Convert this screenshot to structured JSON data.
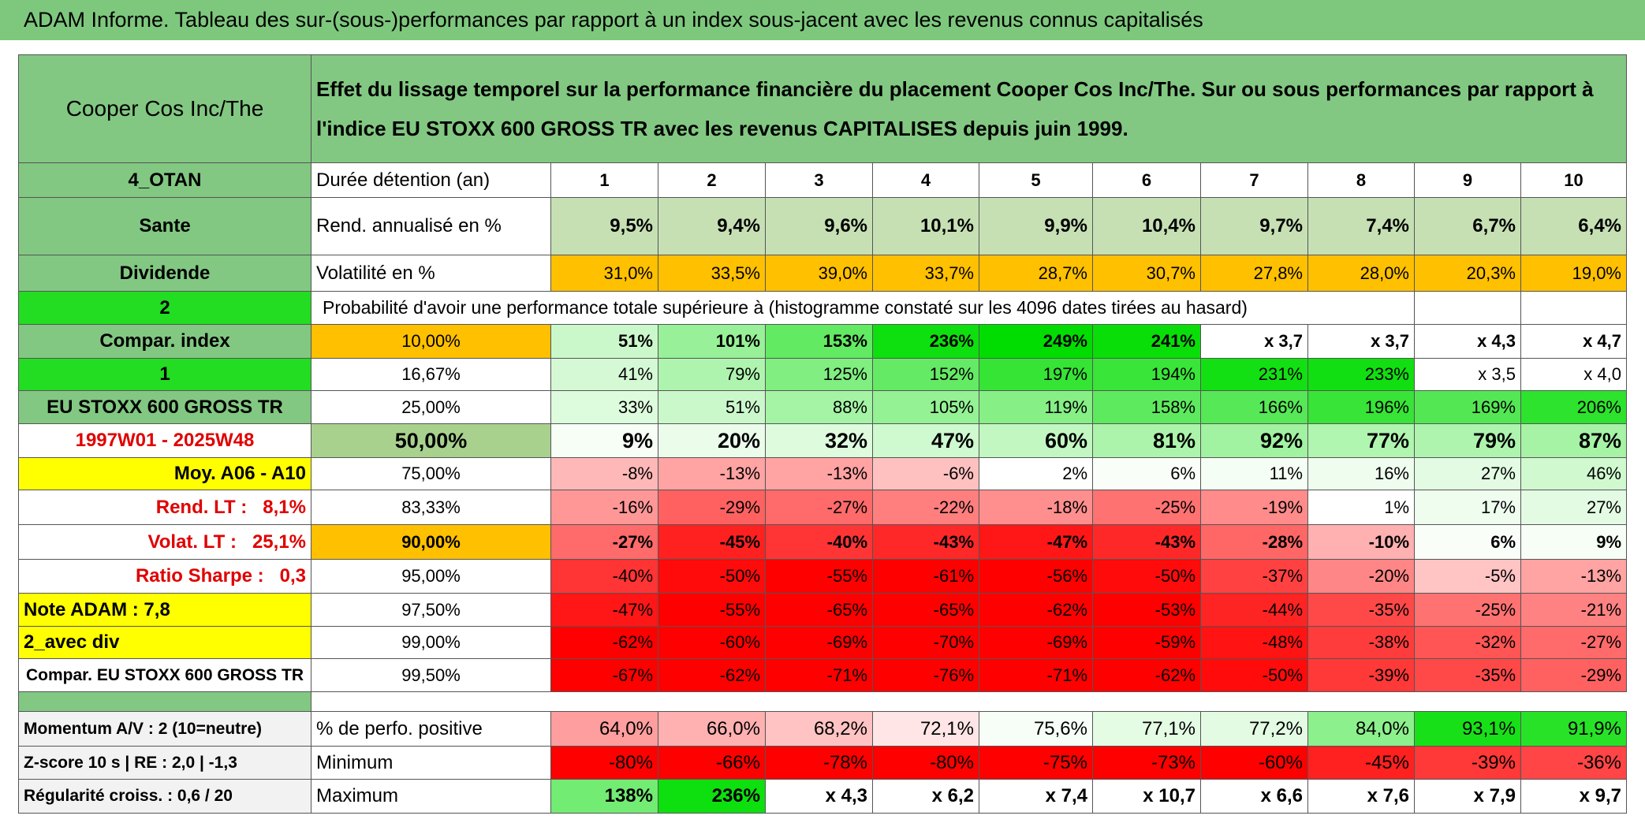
{
  "title": "ADAM Informe. Tableau des sur-(sous-)performances par rapport à un index sous-jacent avec les revenus connus capitalisés",
  "table": {
    "stock": "Cooper Cos Inc/The",
    "description": "Effet du lissage temporel sur la performance financière du placement Cooper Cos Inc/The. Sur ou sous performances par rapport à l'indice EU STOXX 600 GROSS TR avec les revenus CAPITALISES depuis juin 1999.",
    "rows": [
      [
        "4_OTAN",
        "Durée détention (an)",
        "1",
        "2",
        "3",
        "4",
        "5",
        "6",
        "7",
        "8",
        "9",
        "10"
      ],
      [
        "Sante",
        "Rend. annualisé en %",
        "9,5%",
        "9,4%",
        "9,6%",
        "10,1%",
        "9,9%",
        "10,4%",
        "9,7%",
        "7,4%",
        "6,7%",
        "6,4%"
      ],
      [
        "Dividende",
        "Volatilité en %",
        "31,0%",
        "33,5%",
        "39,0%",
        "33,7%",
        "28,7%",
        "30,7%",
        "27,8%",
        "28,0%",
        "20,3%",
        "19,0%"
      ],
      [
        "2",
        "Probabilité d'avoir une performance totale supérieure à (histogramme constaté sur les 4096 dates tirées au hasard)"
      ],
      [
        "Compar. index",
        "10,00%",
        "51%",
        "101%",
        "153%",
        "236%",
        "249%",
        "241%",
        "x 3,7",
        "x 3,7",
        "x 4,3",
        "x 4,7"
      ],
      [
        "1",
        "16,67%",
        "41%",
        "79%",
        "125%",
        "152%",
        "197%",
        "194%",
        "231%",
        "233%",
        "x 3,5",
        "x 4,0"
      ],
      [
        "EU STOXX 600 GROSS TR",
        "25,00%",
        "33%",
        "51%",
        "88%",
        "105%",
        "119%",
        "158%",
        "166%",
        "196%",
        "169%",
        "206%"
      ],
      [
        "1997W01 - 2025W48",
        "50,00%",
        "9%",
        "20%",
        "32%",
        "47%",
        "60%",
        "81%",
        "92%",
        "77%",
        "79%",
        "87%"
      ],
      [
        "Moy. A06 - A10",
        "75,00%",
        "-8%",
        "-13%",
        "-13%",
        "-6%",
        "2%",
        "6%",
        "11%",
        "16%",
        "27%",
        "46%"
      ],
      [
        "Rend. LT :   8,1%",
        "83,33%",
        "-16%",
        "-29%",
        "-27%",
        "-22%",
        "-18%",
        "-25%",
        "-19%",
        "1%",
        "17%",
        "27%"
      ],
      [
        "Volat. LT :   25,1%",
        "90,00%",
        "-27%",
        "-45%",
        "-40%",
        "-43%",
        "-47%",
        "-43%",
        "-28%",
        "-10%",
        "6%",
        "9%"
      ],
      [
        "Ratio Sharpe :   0,3",
        "95,00%",
        "-40%",
        "-50%",
        "-55%",
        "-61%",
        "-56%",
        "-50%",
        "-37%",
        "-20%",
        "-5%",
        "-13%"
      ],
      [
        "Note ADAM : 7,8",
        "97,50%",
        "-47%",
        "-55%",
        "-65%",
        "-65%",
        "-62%",
        "-53%",
        "-44%",
        "-35%",
        "-25%",
        "-21%"
      ],
      [
        "2_avec div",
        "99,00%",
        "-62%",
        "-60%",
        "-69%",
        "-70%",
        "-69%",
        "-59%",
        "-48%",
        "-38%",
        "-32%",
        "-27%"
      ],
      [
        "Compar. EU STOXX 600 GROSS TR",
        "99,50%",
        "-67%",
        "-62%",
        "-71%",
        "-76%",
        "-71%",
        "-62%",
        "-50%",
        "-39%",
        "-35%",
        "-29%"
      ],
      [
        "Momentum A/V : 2 (10=neutre)",
        "% de perfo. positive",
        "64,0%",
        "66,0%",
        "68,2%",
        "72,1%",
        "75,6%",
        "77,1%",
        "77,2%",
        "84,0%",
        "93,1%",
        "91,9%"
      ],
      [
        "Z-score 10 s | RE : 2,0 | -1,3",
        "Minimum",
        "-80%",
        "-66%",
        "-78%",
        "-80%",
        "-75%",
        "-73%",
        "-60%",
        "-45%",
        "-39%",
        "-36%"
      ],
      [
        "Régularité croiss. : 0,6 / 20",
        "Maximum",
        "138%",
        "236%",
        "x 4,3",
        "x 6,2",
        "x 7,4",
        "x 10,7",
        "x 6,6",
        "x 7,6",
        "x 7,9",
        "x 9,7"
      ]
    ]
  }
}
